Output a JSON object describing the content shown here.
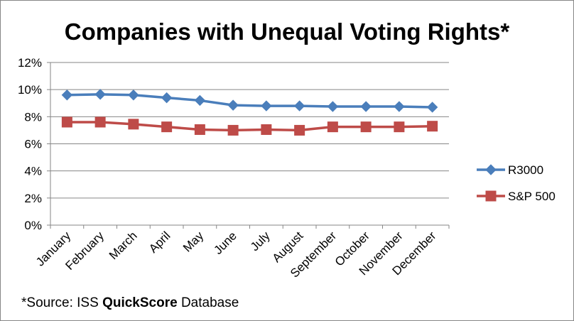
{
  "chart_data": {
    "type": "line",
    "title": "Companies with Unequal Voting Rights*",
    "xlabel": "",
    "ylabel": "",
    "categories": [
      "January",
      "February",
      "March",
      "April",
      "May",
      "June",
      "July",
      "August",
      "September",
      "October",
      "November",
      "December"
    ],
    "ylim": [
      0,
      12
    ],
    "yticks": [
      0,
      2,
      4,
      6,
      8,
      10,
      12
    ],
    "ytick_labels": [
      "0%",
      "2%",
      "4%",
      "6%",
      "8%",
      "10%",
      "12%"
    ],
    "grid": "horizontal",
    "legend_position": "right",
    "series": [
      {
        "name": "R3000",
        "color": "#4a7ebb",
        "marker": "diamond",
        "values": [
          9.6,
          9.65,
          9.6,
          9.4,
          9.2,
          8.85,
          8.8,
          8.8,
          8.75,
          8.75,
          8.75,
          8.7
        ]
      },
      {
        "name": "S&P 500",
        "color": "#be4b48",
        "marker": "square",
        "values": [
          7.6,
          7.6,
          7.45,
          7.25,
          7.05,
          7.0,
          7.05,
          7.0,
          7.25,
          7.25,
          7.25,
          7.3
        ]
      }
    ]
  },
  "source_note": {
    "prefix": "*Source: ISS ",
    "bold": "QuickScore",
    "suffix": " Database"
  }
}
